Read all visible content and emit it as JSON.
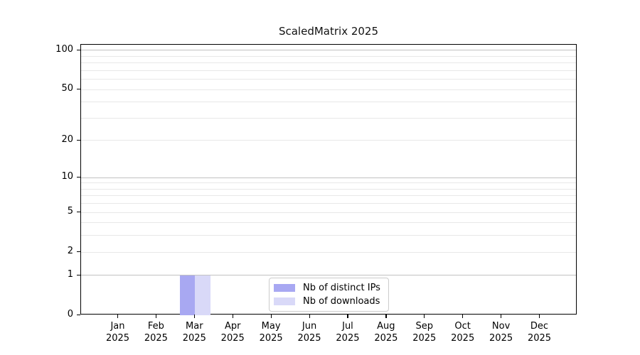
{
  "figure": {
    "background": "#ffffff"
  },
  "chart_data": {
    "type": "bar",
    "title": "ScaledMatrix 2025",
    "categories": [
      "Jan",
      "Feb",
      "Mar",
      "Apr",
      "May",
      "Jun",
      "Jul",
      "Aug",
      "Sep",
      "Oct",
      "Nov",
      "Dec"
    ],
    "category_year": "2025",
    "series": [
      {
        "name": "Nb of distinct IPs",
        "color": "#a8a8f2",
        "values": [
          0,
          0,
          1,
          0,
          0,
          0,
          0,
          0,
          0,
          0,
          0,
          0
        ]
      },
      {
        "name": "Nb of downloads",
        "color": "#d9d9f8",
        "values": [
          0,
          0,
          1,
          0,
          0,
          0,
          0,
          0,
          0,
          0,
          0,
          0
        ]
      }
    ],
    "y_scale": "log10(1+v)",
    "ylim": [
      0,
      110.5
    ],
    "y_ticks_labeled": [
      0,
      1,
      2,
      5,
      10,
      20,
      50,
      100
    ],
    "y_gridlines_major": [
      1,
      10,
      100
    ],
    "y_gridlines_minor": [
      2,
      3,
      4,
      5,
      6,
      7,
      8,
      9,
      20,
      30,
      40,
      50,
      60,
      70,
      80,
      90
    ],
    "grid": true,
    "legend_position": "lower center",
    "colors": {
      "grid_major": "#c2c2c2",
      "grid_minor": "#e8e8e8",
      "axis": "#000000",
      "text": "#000000"
    }
  }
}
